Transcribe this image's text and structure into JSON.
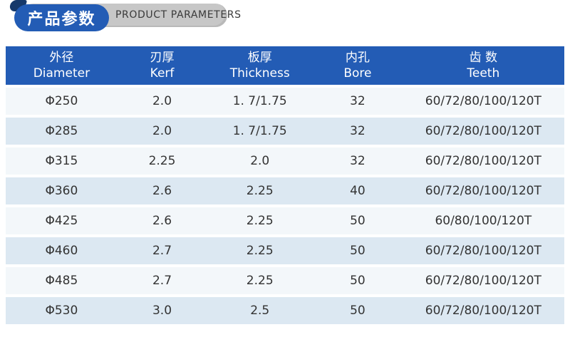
{
  "badge": {
    "title_cn": "产品参数",
    "title_en": "PRODUCT PARAMETERS"
  },
  "table": {
    "columns": [
      {
        "cn": "外径",
        "en": "Diameter"
      },
      {
        "cn": "刃厚",
        "en": "Kerf"
      },
      {
        "cn": "板厚",
        "en": "Thickness"
      },
      {
        "cn": "内孔",
        "en": "Bore"
      },
      {
        "cn": "齿 数",
        "en": "Teeth"
      }
    ],
    "rows": [
      [
        "Φ250",
        "2.0",
        "1. 7/1.75",
        "32",
        "60/72/80/100/120T"
      ],
      [
        "Φ285",
        "2.0",
        "1. 7/1.75",
        "32",
        "60/72/80/100/120T"
      ],
      [
        "Φ315",
        "2.25",
        "2.0",
        "32",
        "60/72/80/100/120T"
      ],
      [
        "Φ360",
        "2.6",
        "2.25",
        "40",
        "60/72/80/100/120T"
      ],
      [
        "Φ425",
        "2.6",
        "2.25",
        "50",
        "60/80/100/120T"
      ],
      [
        "Φ460",
        "2.7",
        "2.25",
        "50",
        "60/72/80/100/120T"
      ],
      [
        "Φ485",
        "2.7",
        "2.25",
        "50",
        "60/72/80/100/120T"
      ],
      [
        "Φ530",
        "3.0",
        "2.5",
        "50",
        "60/72/80/100/120T"
      ]
    ]
  },
  "colors": {
    "accent_blue": "#235cb5",
    "badge_fold_navy": "#16396b",
    "badge_gray": "#c7c7c7",
    "row_light": "#f3f7fa",
    "row_blue": "#dce8f2",
    "text_dark": "#333333"
  }
}
